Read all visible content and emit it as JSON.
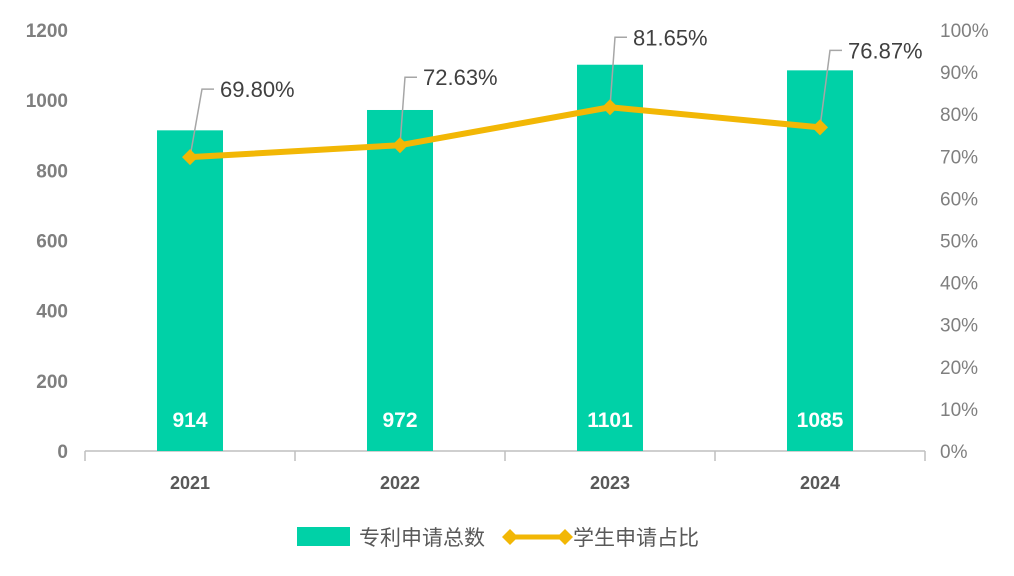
{
  "chart_data": {
    "type": "bar",
    "categories": [
      "2021",
      "2022",
      "2023",
      "2024"
    ],
    "series": [
      {
        "name": "专利申请总数",
        "type": "bar",
        "axis": "left",
        "values": [
          914,
          972,
          1101,
          1085
        ],
        "labels": [
          "914",
          "972",
          "1101",
          "1085"
        ],
        "color": "#00D1A7"
      },
      {
        "name": "学生申请占比",
        "type": "line",
        "axis": "right",
        "values": [
          69.8,
          72.63,
          81.65,
          76.87
        ],
        "labels": [
          "69.80%",
          "72.63%",
          "81.65%",
          "76.87%"
        ],
        "color": "#F2B705"
      }
    ],
    "left_axis": {
      "ylim": [
        0,
        1200
      ],
      "ticks": [
        "0",
        "200",
        "400",
        "600",
        "800",
        "1000",
        "1200"
      ]
    },
    "right_axis": {
      "ylim": [
        0,
        100
      ],
      "ticks": [
        "0%",
        "10%",
        "20%",
        "30%",
        "40%",
        "50%",
        "60%",
        "70%",
        "80%",
        "90%",
        "100%"
      ]
    },
    "grid": false,
    "legend": "bottom"
  }
}
